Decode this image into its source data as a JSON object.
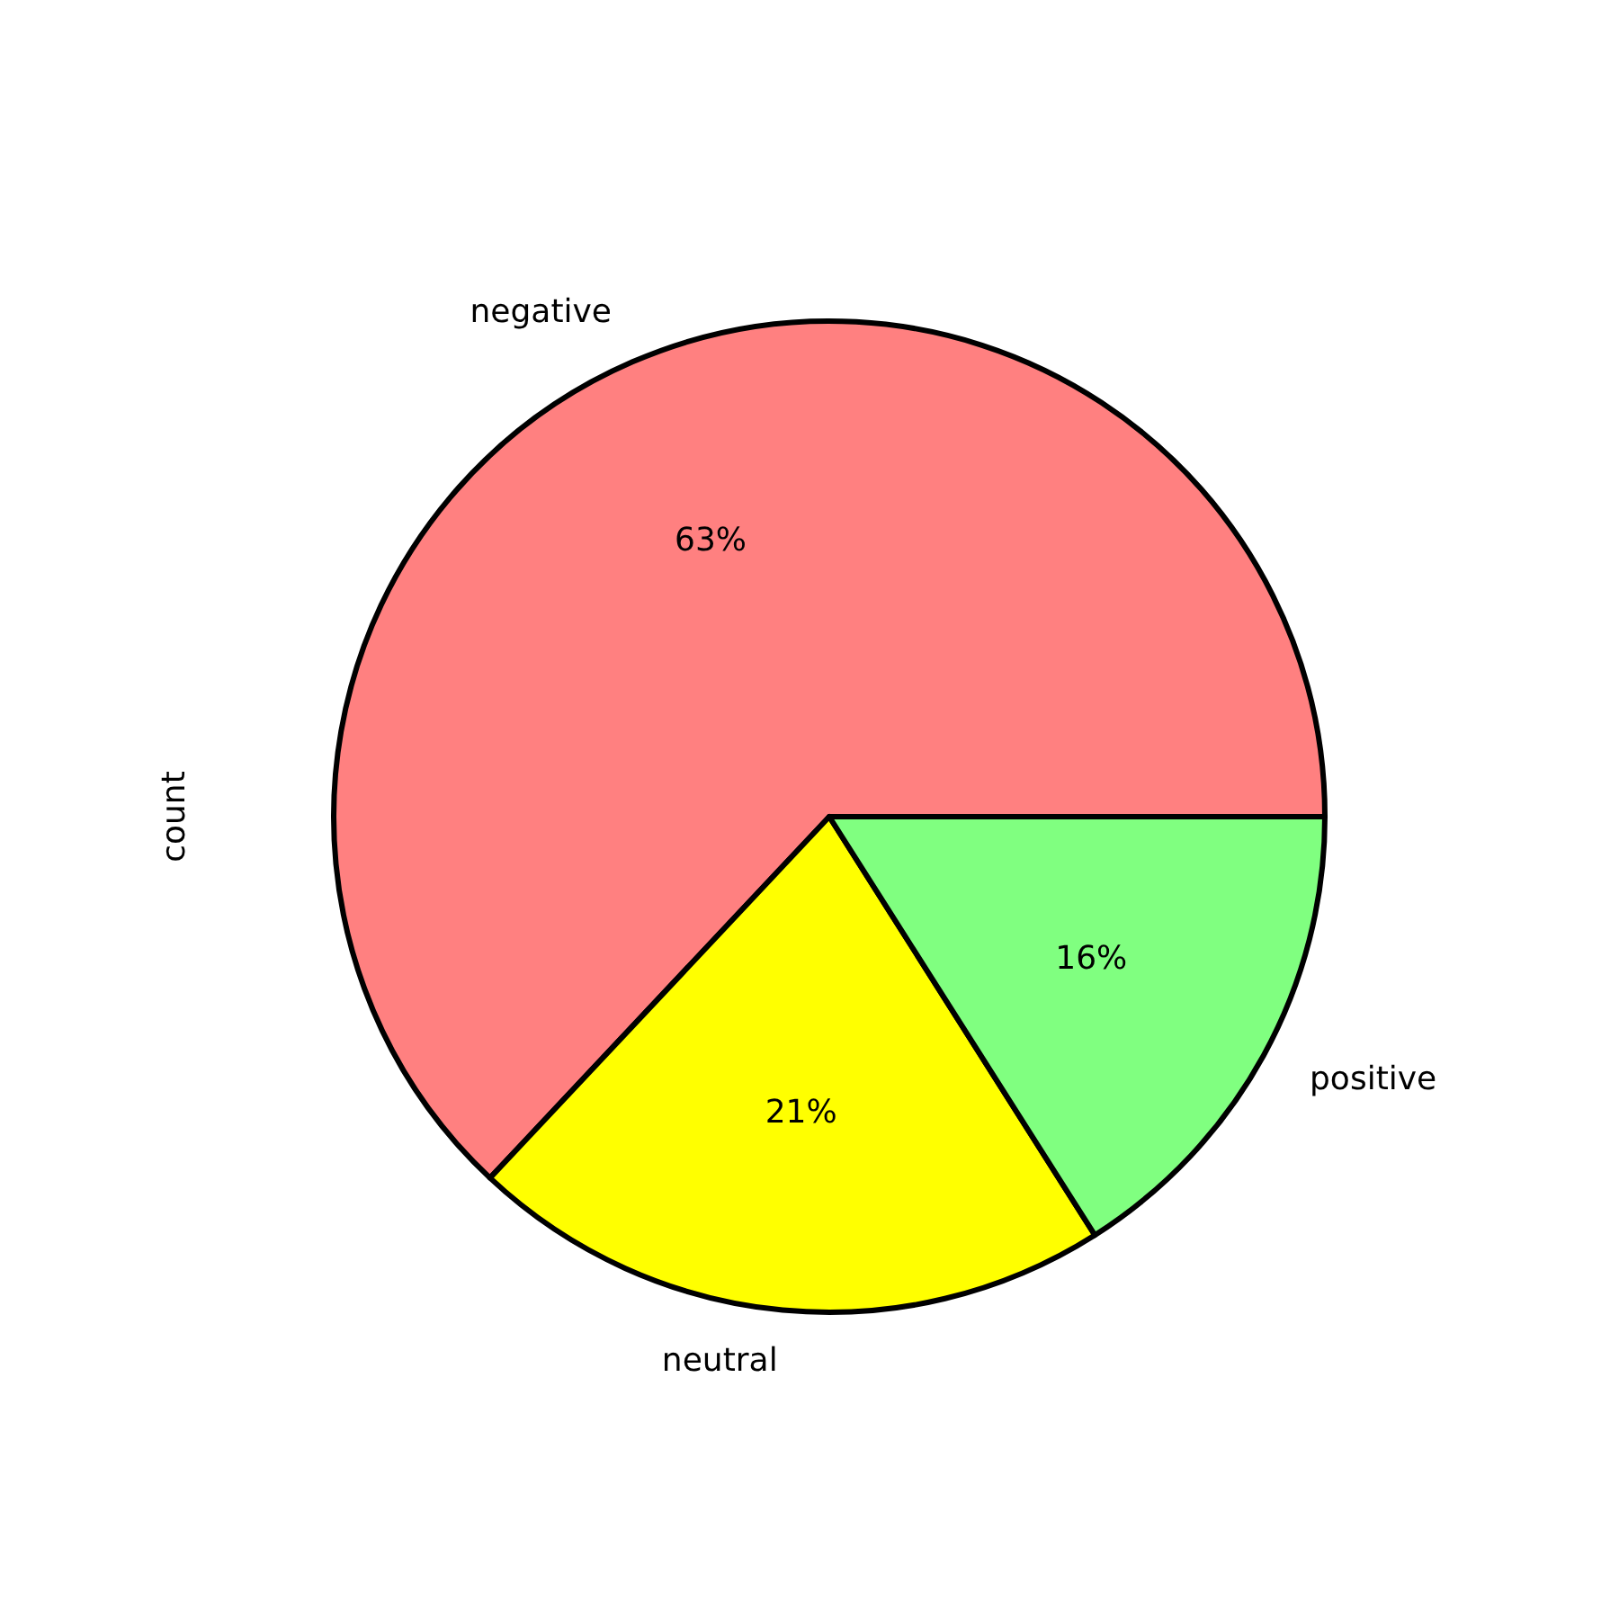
{
  "chart_data": {
    "type": "pie",
    "ylabel": "count",
    "categories": [
      "negative",
      "neutral",
      "positive"
    ],
    "values": [
      63,
      21,
      16
    ],
    "colors": [
      "#ff8080",
      "#ffff00",
      "#80ff80"
    ],
    "value_labels": [
      "63%",
      "21%",
      "16%"
    ],
    "legend": false
  }
}
